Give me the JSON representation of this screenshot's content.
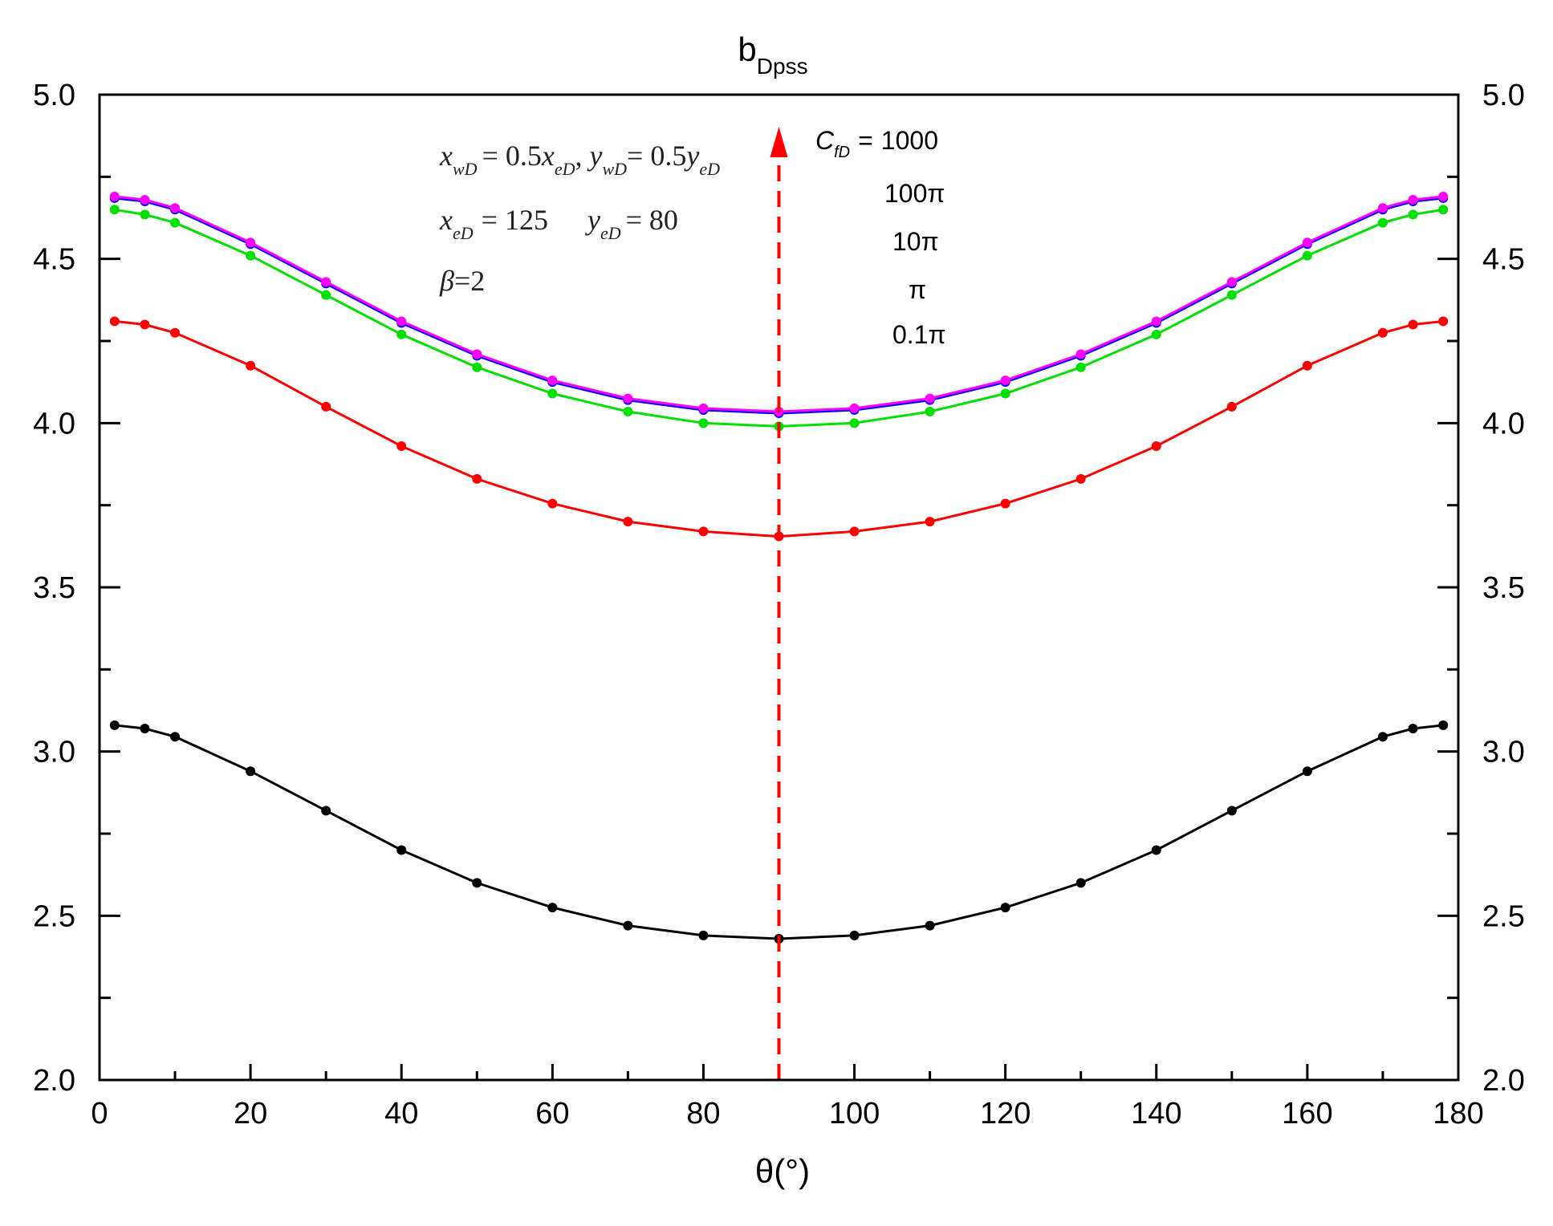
{
  "chart_data": {
    "type": "line",
    "title": "b",
    "title_subscript": "Dpss",
    "xlabel": "θ(°)",
    "ylabel": "",
    "xlim": [
      0,
      180
    ],
    "ylim": [
      2.0,
      5.0
    ],
    "x_ticks": [
      "0",
      "20",
      "40",
      "60",
      "80",
      "100",
      "120",
      "140",
      "160",
      "180"
    ],
    "y_ticks": [
      "2.0",
      "2.5",
      "3.0",
      "3.5",
      "4.0",
      "4.5",
      "5.0"
    ],
    "x": [
      2,
      6,
      10,
      20,
      30,
      40,
      50,
      60,
      70,
      80,
      90,
      100,
      110,
      120,
      130,
      140,
      150,
      160,
      170,
      174,
      178
    ],
    "series": [
      {
        "name": "1000",
        "color": "#ff00ff",
        "values": [
          4.69,
          4.68,
          4.655,
          4.55,
          4.43,
          4.31,
          4.21,
          4.13,
          4.075,
          4.045,
          4.035,
          4.045,
          4.075,
          4.13,
          4.21,
          4.31,
          4.43,
          4.55,
          4.655,
          4.68,
          4.69
        ]
      },
      {
        "name": "100π",
        "color": "#0000ff",
        "values": [
          4.685,
          4.675,
          4.65,
          4.545,
          4.425,
          4.305,
          4.205,
          4.125,
          4.07,
          4.04,
          4.03,
          4.04,
          4.07,
          4.125,
          4.205,
          4.305,
          4.425,
          4.545,
          4.65,
          4.675,
          4.685
        ]
      },
      {
        "name": "10π",
        "color": "#00e000",
        "values": [
          4.65,
          4.635,
          4.61,
          4.51,
          4.39,
          4.27,
          4.17,
          4.09,
          4.035,
          4.0,
          3.99,
          4.0,
          4.035,
          4.09,
          4.17,
          4.27,
          4.39,
          4.51,
          4.61,
          4.635,
          4.65
        ]
      },
      {
        "name": "π",
        "color": "#ff0000",
        "values": [
          4.31,
          4.3,
          4.275,
          4.175,
          4.05,
          3.93,
          3.83,
          3.755,
          3.7,
          3.67,
          3.655,
          3.67,
          3.7,
          3.755,
          3.83,
          3.93,
          4.05,
          4.175,
          4.275,
          4.3,
          4.31
        ]
      },
      {
        "name": "0.1π",
        "color": "#000000",
        "values": [
          3.08,
          3.07,
          3.045,
          2.94,
          2.82,
          2.7,
          2.6,
          2.525,
          2.47,
          2.44,
          2.43,
          2.44,
          2.47,
          2.525,
          2.6,
          2.7,
          2.82,
          2.94,
          3.045,
          3.07,
          3.08
        ]
      }
    ],
    "marker_x": 90,
    "annotations": {
      "legend_prefix_var": "C",
      "legend_prefix_sub": "fD",
      "legend_prefix_eq": "=",
      "cond1_a_var": "x",
      "cond1_a_sub": "wD",
      "cond1_a_eq": "= 0.5",
      "cond1_b_var": "x",
      "cond1_b_sub": "eD",
      "cond1_c_var": "y",
      "cond1_c_sub": "wD",
      "cond1_c_eq": "= 0.5",
      "cond1_d_var": "y",
      "cond1_d_sub": "eD",
      "cond2_a_var": "x",
      "cond2_a_sub": "eD",
      "cond2_a_eq": "= 125",
      "cond2_b_var": "y",
      "cond2_b_sub": "eD",
      "cond2_b_eq": "= 80",
      "cond3_var": "β",
      "cond3_eq": "=2"
    }
  }
}
